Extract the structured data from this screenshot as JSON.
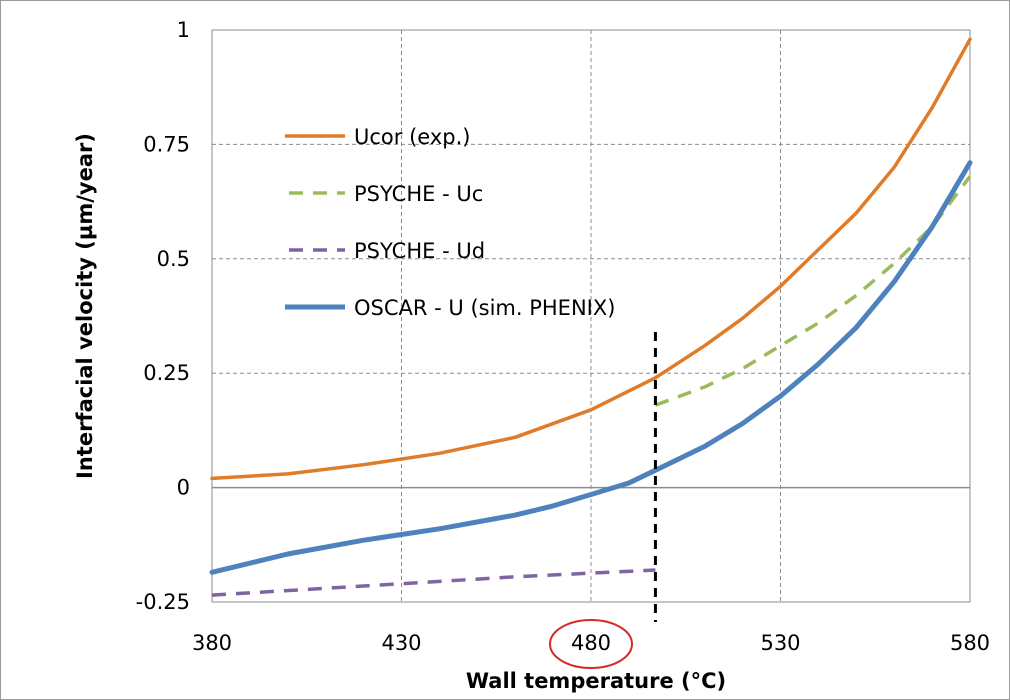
{
  "chart_data": {
    "type": "line",
    "xlabel": "Wall temperature (°C)",
    "ylabel": "Interfacial velocity (µm/year)",
    "xlim": [
      380,
      580
    ],
    "ylim": [
      -0.25,
      1
    ],
    "xticks": [
      380,
      430,
      480,
      530,
      580
    ],
    "yticks": [
      -0.25,
      0,
      0.25,
      0.5,
      0.75,
      1
    ],
    "ytick_labels": [
      "-0.25",
      "0",
      "0.25",
      "0.5",
      "0.75",
      "1"
    ],
    "grid": true,
    "legend_position": "upper-left",
    "vertical_marker_x": 497,
    "highlighted_tick": 480,
    "series": [
      {
        "name": "Ucor (exp.)",
        "style": "solid",
        "color": "#e07b28",
        "x": [
          380,
          400,
          420,
          440,
          460,
          480,
          497,
          510,
          520,
          530,
          540,
          550,
          560,
          570,
          580
        ],
        "y": [
          0.02,
          0.03,
          0.05,
          0.075,
          0.11,
          0.17,
          0.24,
          0.31,
          0.37,
          0.44,
          0.52,
          0.6,
          0.7,
          0.83,
          0.98
        ]
      },
      {
        "name": "PSYCHE  - Uc",
        "style": "dashed",
        "color": "#9bbb59",
        "x": [
          497,
          510,
          520,
          530,
          540,
          550,
          560,
          570,
          580
        ],
        "y": [
          0.18,
          0.22,
          0.26,
          0.31,
          0.36,
          0.42,
          0.49,
          0.57,
          0.68
        ]
      },
      {
        "name": "PSYCHE - Ud",
        "style": "dashed",
        "color": "#8064a2",
        "x": [
          380,
          420,
          460,
          497
        ],
        "y": [
          -0.235,
          -0.215,
          -0.195,
          -0.18
        ]
      },
      {
        "name": "OSCAR - U (sim. PHENIX)",
        "style": "solid",
        "color": "#4f81bd",
        "x": [
          380,
          400,
          420,
          440,
          460,
          470,
          480,
          490,
          500,
          510,
          520,
          530,
          540,
          550,
          560,
          570,
          580
        ],
        "y": [
          -0.185,
          -0.145,
          -0.115,
          -0.09,
          -0.06,
          -0.04,
          -0.015,
          0.01,
          0.05,
          0.09,
          0.14,
          0.2,
          0.27,
          0.35,
          0.45,
          0.57,
          0.71
        ]
      }
    ]
  }
}
